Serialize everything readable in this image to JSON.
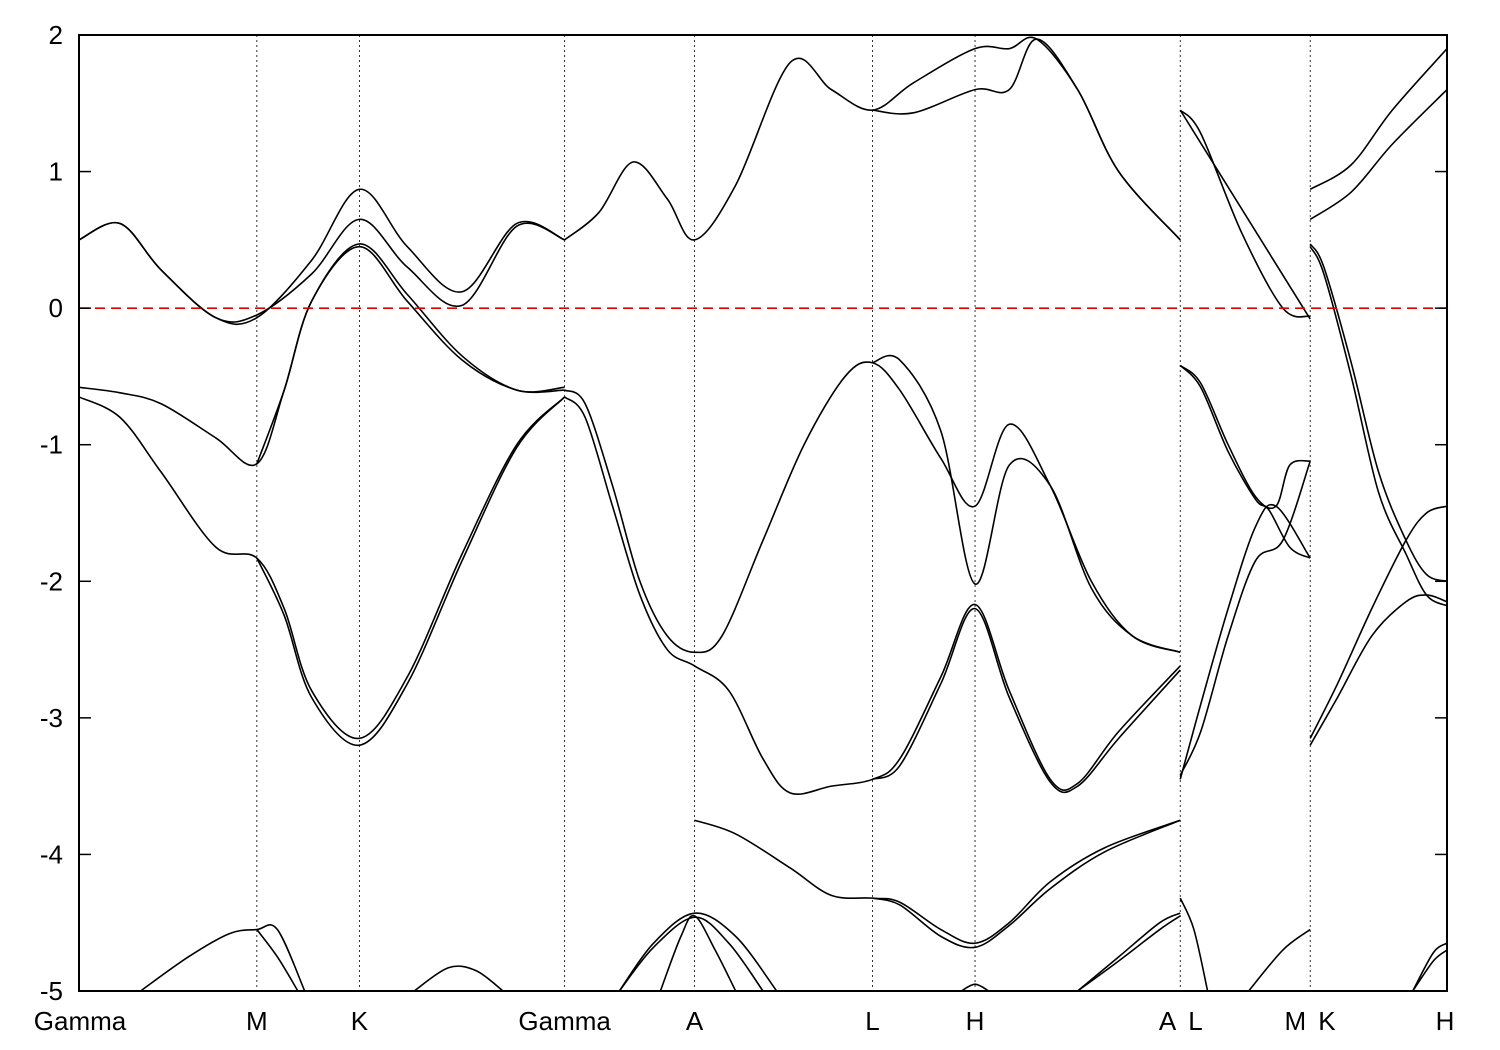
{
  "chart_data": {
    "type": "line",
    "title": "",
    "xlabel": "",
    "ylabel": "",
    "ylim": [
      -5,
      2
    ],
    "yticks": [
      2,
      1,
      0,
      -1,
      -2,
      -3,
      -4,
      -5
    ],
    "ytick_labels": [
      "2",
      "1",
      "0",
      "-1",
      "-2",
      "-3",
      "-4",
      "-5"
    ],
    "grid": "vertical dotted lines at high-symmetry points",
    "fermi_level": {
      "value": 0,
      "color": "#dd0000",
      "style": "dashed"
    },
    "x_range": [
      0,
      10.0
    ],
    "kpoints": [
      {
        "label": "Gamma",
        "x": 0.0
      },
      {
        "label": "M",
        "x": 1.3
      },
      {
        "label": "K",
        "x": 2.05
      },
      {
        "label": "Gamma",
        "x": 3.55
      },
      {
        "label": "A",
        "x": 4.5
      },
      {
        "label": "L",
        "x": 5.8
      },
      {
        "label": "H",
        "x": 6.55
      },
      {
        "label": "A",
        "x": 8.05
      },
      {
        "label": "L",
        "x": 8.05
      },
      {
        "label": "M",
        "x": 9.0
      },
      {
        "label": "K",
        "x": 9.0
      },
      {
        "label": "H",
        "x": 10.0
      }
    ],
    "kpoint_tick_labels": [
      "Gamma",
      "M",
      "K",
      "Gamma",
      "A",
      "L",
      "H",
      "A",
      "L",
      "M",
      "K",
      "H"
    ],
    "series": [
      {
        "x": [
          0,
          0.3,
          0.6,
          1.0,
          1.3,
          1.7,
          2.05,
          2.4,
          2.8,
          3.2,
          3.55
        ],
        "values": [
          0.5,
          0.62,
          0.28,
          -0.07,
          -0.07,
          0.35,
          0.87,
          0.45,
          0.12,
          0.62,
          0.5
        ]
      },
      {
        "x": [
          0,
          0.3,
          0.6,
          1.0,
          1.3,
          1.7,
          2.05,
          2.4,
          2.8,
          3.2,
          3.55
        ],
        "values": [
          0.5,
          0.62,
          0.28,
          -0.07,
          -0.05,
          0.25,
          0.65,
          0.3,
          0.02,
          0.6,
          0.5
        ]
      },
      {
        "x": [
          3.55,
          3.8,
          4.05,
          4.3,
          4.5,
          4.8,
          5.2,
          5.5,
          5.8,
          6.1,
          6.55,
          6.8,
          7.0,
          7.3,
          7.6,
          8.05
        ],
        "values": [
          0.5,
          0.7,
          1.07,
          0.8,
          0.5,
          0.9,
          1.8,
          1.6,
          1.45,
          1.65,
          1.9,
          1.9,
          1.97,
          1.6,
          1.0,
          0.5
        ]
      },
      {
        "x": [
          5.8,
          6.1,
          6.55,
          6.8,
          7.0,
          7.3,
          7.6,
          8.05
        ],
        "values": [
          1.45,
          1.43,
          1.6,
          1.6,
          1.97,
          1.6,
          1.0,
          0.5
        ]
      },
      {
        "x": [
          0,
          0.3,
          0.6,
          1.0,
          1.3,
          1.5,
          1.7,
          2.05,
          2.4,
          2.8,
          3.2,
          3.55
        ],
        "values": [
          -0.58,
          -0.62,
          -0.7,
          -0.95,
          -1.14,
          -0.6,
          0.05,
          0.47,
          0.1,
          -0.35,
          -0.6,
          -0.58
        ]
      },
      {
        "x": [
          1.3,
          1.5,
          1.7,
          2.05,
          2.4,
          2.8,
          3.2,
          3.55
        ],
        "values": [
          -1.14,
          -0.6,
          0.05,
          0.45,
          0.05,
          -0.38,
          -0.6,
          -0.6
        ]
      },
      {
        "x": [
          0,
          0.3,
          0.6,
          1.0,
          1.3,
          1.5,
          1.7,
          2.05,
          2.4,
          2.8,
          3.2,
          3.55
        ],
        "values": [
          -0.65,
          -0.8,
          -1.2,
          -1.75,
          -1.83,
          -2.2,
          -2.8,
          -3.15,
          -2.7,
          -1.8,
          -1.0,
          -0.65
        ]
      },
      {
        "x": [
          1.3,
          1.5,
          1.7,
          2.05,
          2.4,
          2.8,
          3.2,
          3.55
        ],
        "values": [
          -1.83,
          -2.25,
          -2.85,
          -3.2,
          -2.75,
          -1.85,
          -1.02,
          -0.65
        ]
      },
      {
        "x": [
          3.55,
          3.7,
          3.9,
          4.1,
          4.3,
          4.5,
          4.7,
          5.0,
          5.3,
          5.6,
          5.8,
          6.0,
          6.3,
          6.55,
          6.8,
          7.1,
          7.4,
          7.7,
          8.05
        ],
        "values": [
          -0.6,
          -0.7,
          -1.3,
          -2.0,
          -2.4,
          -2.52,
          -2.4,
          -1.7,
          -1.0,
          -0.5,
          -0.4,
          -0.6,
          -1.1,
          -1.45,
          -0.85,
          -1.3,
          -2.0,
          -2.4,
          -2.52
        ]
      },
      {
        "x": [
          5.8,
          6.0,
          6.3,
          6.55,
          6.8,
          7.1,
          7.4,
          7.7,
          8.05
        ],
        "values": [
          -0.4,
          -0.38,
          -0.9,
          -2.02,
          -1.15,
          -1.3,
          -2.05,
          -2.4,
          -2.52
        ]
      },
      {
        "x": [
          3.55,
          3.7,
          3.9,
          4.1,
          4.3,
          4.5,
          4.75,
          5.0,
          5.2,
          5.5,
          5.8,
          6.0,
          6.3,
          6.55,
          6.8,
          7.1,
          7.3,
          7.6,
          8.05
        ],
        "values": [
          -0.65,
          -0.8,
          -1.45,
          -2.1,
          -2.5,
          -2.62,
          -2.8,
          -3.3,
          -3.55,
          -3.5,
          -3.45,
          -3.3,
          -2.7,
          -2.17,
          -2.8,
          -3.45,
          -3.48,
          -3.1,
          -2.62
        ]
      },
      {
        "x": [
          5.8,
          6.0,
          6.3,
          6.55,
          6.8,
          7.1,
          7.3,
          7.6,
          8.05
        ],
        "values": [
          -3.45,
          -3.35,
          -2.75,
          -2.2,
          -2.85,
          -3.47,
          -3.5,
          -3.15,
          -2.65
        ]
      },
      {
        "x": [
          4.5,
          4.8,
          5.2,
          5.5,
          5.8,
          6.0,
          6.3,
          6.55,
          6.8,
          7.1,
          7.5,
          8.05
        ],
        "values": [
          -3.75,
          -3.85,
          -4.1,
          -4.3,
          -4.32,
          -4.35,
          -4.55,
          -4.65,
          -4.5,
          -4.2,
          -3.95,
          -3.75
        ]
      },
      {
        "x": [
          5.8,
          6.0,
          6.3,
          6.55,
          6.8,
          7.1,
          7.5,
          8.05
        ],
        "values": [
          -4.32,
          -4.37,
          -4.6,
          -4.68,
          -4.52,
          -4.25,
          -3.98,
          -3.75
        ]
      },
      {
        "x": [
          0.45,
          0.8,
          1.1,
          1.3,
          1.45,
          1.65
        ],
        "values": [
          -5.0,
          -4.75,
          -4.58,
          -4.55,
          -4.55,
          -5.0
        ]
      },
      {
        "x": [
          1.3,
          1.45,
          1.6
        ],
        "values": [
          -4.55,
          -4.75,
          -5.0
        ]
      },
      {
        "x": [
          2.45,
          2.7,
          2.9,
          3.1
        ],
        "values": [
          -5.0,
          -4.83,
          -4.85,
          -5.0
        ]
      },
      {
        "x": [
          3.95,
          4.2,
          4.5,
          4.8,
          5.1
        ],
        "values": [
          -5.0,
          -4.65,
          -4.43,
          -4.6,
          -5.0
        ]
      },
      {
        "x": [
          3.95,
          4.2,
          4.5,
          4.75,
          5.0
        ],
        "values": [
          -5.0,
          -4.68,
          -4.46,
          -4.65,
          -5.0
        ]
      },
      {
        "x": [
          4.25,
          4.4,
          4.5,
          4.65,
          4.8
        ],
        "values": [
          -5.0,
          -4.6,
          -4.45,
          -4.7,
          -5.0
        ]
      },
      {
        "x": [
          6.45,
          6.55,
          6.65
        ],
        "values": [
          -5.0,
          -4.95,
          -5.0
        ]
      },
      {
        "x": [
          7.3,
          7.6,
          7.9,
          8.05
        ],
        "values": [
          -5.0,
          -4.75,
          -4.5,
          -4.43
        ]
      },
      {
        "x": [
          7.3,
          7.6,
          7.9,
          8.05
        ],
        "values": [
          -5.0,
          -4.78,
          -4.55,
          -4.45
        ]
      },
      {
        "x": [
          8.05,
          9.0
        ],
        "values": [
          1.45,
          -0.08
        ],
        "curve": [
          8.05,
          8.2,
          8.5,
          8.8,
          9.0,
          1.45,
          1.3,
          0.6,
          0.05,
          -0.08
        ]
      },
      {
        "x": [
          8.05,
          8.2,
          8.5,
          8.8,
          9.0
        ],
        "values": [
          1.45,
          1.28,
          0.55,
          0.0,
          -0.06
        ]
      },
      {
        "x": [
          8.05,
          8.2,
          8.4,
          8.6,
          8.75,
          8.85,
          9.0
        ],
        "values": [
          -0.42,
          -0.55,
          -1.0,
          -1.38,
          -1.45,
          -1.15,
          -1.12
        ]
      },
      {
        "x": [
          8.05,
          8.2,
          8.4,
          8.6,
          8.7,
          8.85,
          9.0
        ],
        "values": [
          -0.42,
          -0.58,
          -1.05,
          -1.4,
          -1.48,
          -1.75,
          -1.83
        ]
      },
      {
        "x": [
          8.05,
          8.2,
          8.4,
          8.6,
          8.75,
          9.0
        ],
        "values": [
          -3.45,
          -2.9,
          -2.2,
          -1.6,
          -1.45,
          -1.83
        ]
      },
      {
        "x": [
          8.05,
          8.2,
          8.4,
          8.6,
          8.8,
          9.0
        ],
        "values": [
          -3.42,
          -3.1,
          -2.4,
          -1.85,
          -1.7,
          -1.12
        ]
      },
      {
        "x": [
          8.05,
          8.15,
          8.25
        ],
        "values": [
          -4.32,
          -4.55,
          -5.0
        ]
      },
      {
        "x": [
          8.55,
          8.8,
          9.0
        ],
        "values": [
          -5.0,
          -4.7,
          -4.55
        ]
      },
      {
        "x": [
          9.0,
          9.3,
          9.6,
          10.0
        ],
        "values": [
          0.87,
          1.05,
          1.45,
          1.9
        ]
      },
      {
        "x": [
          9.0,
          9.3,
          9.6,
          10.0
        ],
        "values": [
          0.65,
          0.85,
          1.2,
          1.6
        ]
      },
      {
        "x": [
          9.0,
          9.1,
          9.3,
          9.5,
          9.7,
          9.85,
          10.0
        ],
        "values": [
          0.47,
          0.3,
          -0.4,
          -1.2,
          -1.7,
          -1.95,
          -2.0
        ]
      },
      {
        "x": [
          9.0,
          9.1,
          9.3,
          9.5,
          9.7,
          9.85,
          10.0
        ],
        "values": [
          0.45,
          0.25,
          -0.5,
          -1.35,
          -1.8,
          -2.1,
          -2.18
        ]
      },
      {
        "x": [
          9.0,
          9.2,
          9.45,
          9.7,
          9.85,
          10.0
        ],
        "values": [
          -3.15,
          -2.75,
          -2.2,
          -1.7,
          -1.5,
          -1.45
        ]
      },
      {
        "x": [
          9.0,
          9.2,
          9.45,
          9.7,
          9.85,
          10.0
        ],
        "values": [
          -3.2,
          -2.85,
          -2.4,
          -2.15,
          -2.1,
          -2.15
        ]
      },
      {
        "x": [
          9.75,
          9.9,
          10.0
        ],
        "values": [
          -5.0,
          -4.72,
          -4.65
        ]
      },
      {
        "x": [
          9.75,
          9.9,
          10.0
        ],
        "values": [
          -5.0,
          -4.78,
          -4.7
        ]
      }
    ]
  }
}
